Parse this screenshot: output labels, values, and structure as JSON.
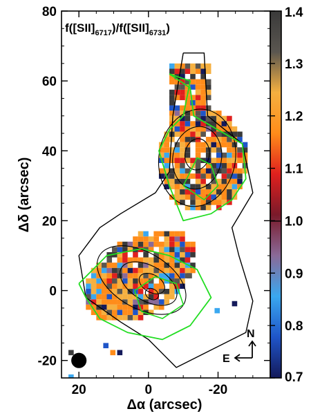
{
  "chart_data": {
    "type": "heatmap",
    "title": "",
    "panel_label": {
      "prefix": "f([SII]",
      "sub1": "6717",
      "mid": ")/f([SII]",
      "sub2": "6731",
      "suffix": ")"
    },
    "xlabel": "Δα (arcsec)",
    "ylabel": "Δδ (arcsec)",
    "xlim": [
      25,
      -35
    ],
    "ylim": [
      -25,
      80
    ],
    "x_ticks": [
      20,
      0,
      -20
    ],
    "y_ticks": [
      -20,
      0,
      20,
      40,
      60,
      80
    ],
    "colorbar": {
      "min": 0.7,
      "max": 1.4,
      "ticks": [
        1.4,
        1.3,
        1.2,
        1.1,
        1.0,
        0.9,
        0.8,
        0.7
      ],
      "colors": [
        "#141a5a",
        "#1f55c8",
        "#3aa8f0",
        "#8a6a98",
        "#7a1a2a",
        "#e0201e",
        "#ff8c1a",
        "#f5b040",
        "#5a5650",
        "#3a3a3a"
      ]
    },
    "compass": {
      "north": "N",
      "east": "E"
    },
    "beam": {
      "x": 20,
      "y": -20,
      "radius_arcsec": 2.2
    },
    "blobs": [
      {
        "name": "northern",
        "center": [
          -14,
          38
        ],
        "extent": [
          -28,
          -2,
          12,
          66
        ]
      },
      {
        "name": "southern",
        "center": [
          0,
          4
        ],
        "extent": [
          -16,
          20,
          -14,
          26
        ]
      }
    ],
    "isolated_pixels": [
      {
        "x": 23,
        "y": -17,
        "color": "#3a3a3a"
      },
      {
        "x": 21,
        "y": -19,
        "color": "#1f55c8"
      },
      {
        "x": 13,
        "y": -15,
        "color": "#1f55c8"
      },
      {
        "x": 11,
        "y": -17,
        "color": "#ff8c1a"
      },
      {
        "x": 9,
        "y": -17,
        "color": "#141a5a"
      },
      {
        "x": 23,
        "y": -24,
        "color": "#3aa8f0"
      },
      {
        "x": -9,
        "y": 8,
        "color": "#f5b040"
      },
      {
        "x": -11,
        "y": 5,
        "color": "#5a5650"
      },
      {
        "x": -24,
        "y": -3,
        "color": "#141a5a"
      },
      {
        "x": -19,
        "y": -5,
        "color": "#3aa8f0"
      }
    ]
  }
}
